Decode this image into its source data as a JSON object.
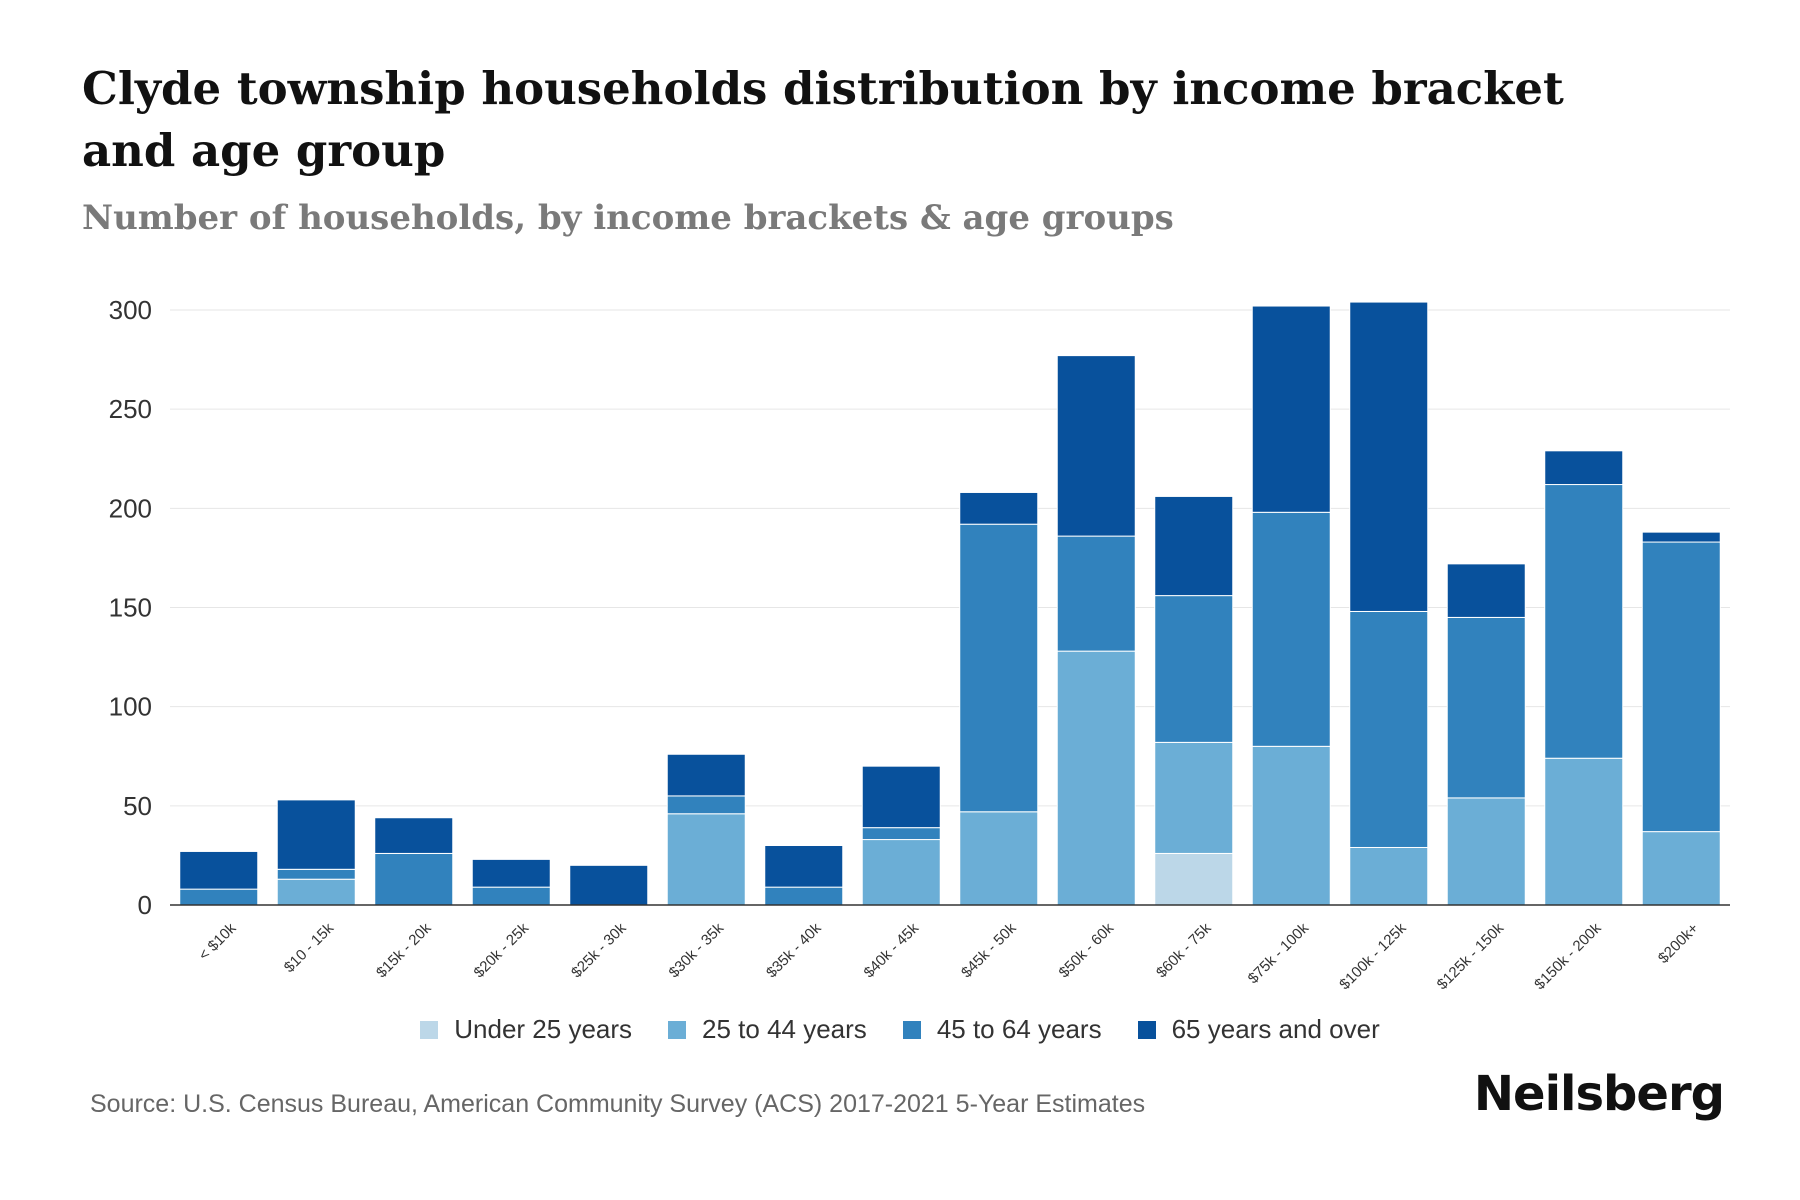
{
  "chart_data": {
    "type": "bar",
    "stacked": true,
    "title": "Clyde township households distribution by income bracket and age group",
    "subtitle": "Number of households, by income brackets & age groups",
    "xlabel": "",
    "ylabel": "",
    "ylim": [
      0,
      300
    ],
    "yticks": [
      0,
      50,
      100,
      150,
      200,
      250,
      300
    ],
    "grid": true,
    "legend_position": "bottom",
    "categories": [
      "< $10k",
      "$10 - 15k",
      "$15k - 20k",
      "$20k - 25k",
      "$25k - 30k",
      "$30k - 35k",
      "$35k - 40k",
      "$40k - 45k",
      "$45k - 50k",
      "$50k - 60k",
      "$60k - 75k",
      "$75k - 100k",
      "$100k - 125k",
      "$125k - 150k",
      "$150k - 200k",
      "$200k+"
    ],
    "series": [
      {
        "name": "Under 25 years",
        "color": "#bcd7e8",
        "values": [
          0,
          0,
          0,
          0,
          0,
          0,
          0,
          0,
          0,
          0,
          26,
          0,
          0,
          0,
          0,
          0
        ]
      },
      {
        "name": "25 to 44 years",
        "color": "#6baed6",
        "values": [
          0,
          13,
          0,
          0,
          0,
          46,
          0,
          33,
          47,
          128,
          56,
          80,
          29,
          54,
          74,
          37
        ]
      },
      {
        "name": "45 to 64 years",
        "color": "#3182bd",
        "values": [
          8,
          5,
          26,
          9,
          0,
          9,
          9,
          6,
          145,
          58,
          74,
          118,
          119,
          91,
          138,
          146
        ]
      },
      {
        "name": "65 years and over",
        "color": "#08519c",
        "values": [
          19,
          35,
          18,
          14,
          20,
          21,
          21,
          31,
          16,
          91,
          50,
          104,
          156,
          27,
          17,
          5
        ]
      }
    ]
  },
  "footer": {
    "source": "Source: U.S. Census Bureau, American Community Survey (ACS) 2017-2021 5-Year Estimates",
    "brand": "Neilsberg"
  }
}
